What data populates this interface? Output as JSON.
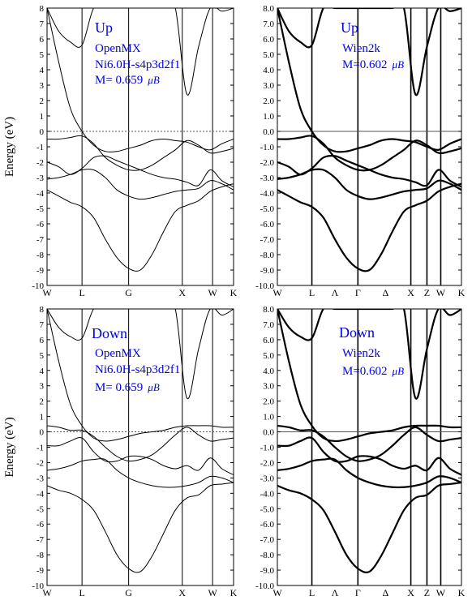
{
  "panels": [
    {
      "id": "up-openmx",
      "ylabel": "Energy (eV)",
      "ylim": [
        -10,
        8
      ],
      "y_ticks": [
        "8",
        "7",
        "6",
        "5",
        "4",
        "3",
        "2",
        "1",
        "0",
        "-1",
        "-2",
        "-3",
        "-4",
        "-5",
        "-6",
        "-7",
        "-8",
        "-9",
        "-10"
      ],
      "x_ticks": [
        "W",
        "L",
        "G",
        "X",
        "W",
        "K"
      ],
      "annotations": [
        "Up",
        "OpenMX",
        "Ni6.0H-s4p3d2f1",
        "M= 0.659"
      ],
      "unit": "μB"
    },
    {
      "id": "up-wien2k",
      "ylabel": "",
      "ylim": [
        -10,
        8
      ],
      "y_ticks": [
        "8.0",
        "7.0",
        "6.0",
        "5.0",
        "4.0",
        "3.0",
        "2.0",
        "1.0",
        "0.0",
        "-1.0",
        "-2.0",
        "-3.0",
        "-4.0",
        "-5.0",
        "-6.0",
        "-7.0",
        "-8.0",
        "-9.0",
        "-10.0"
      ],
      "x_ticks": [
        "W",
        "L",
        "Λ",
        "Γ",
        "Δ",
        "X",
        "Z",
        "W",
        "K"
      ],
      "annotations": [
        "Up",
        "Wien2k",
        "M=0.602"
      ],
      "unit": "μB"
    },
    {
      "id": "down-openmx",
      "ylabel": "Energy (eV)",
      "ylim": [
        -10,
        8
      ],
      "y_ticks": [
        "8",
        "7",
        "6",
        "5",
        "4",
        "3",
        "2",
        "1",
        "0",
        "-1",
        "-2",
        "-3",
        "-4",
        "-5",
        "-6",
        "-7",
        "-8",
        "-9",
        "-10"
      ],
      "x_ticks": [
        "W",
        "L",
        "G",
        "X",
        "W",
        "K"
      ],
      "annotations": [
        "Down",
        "OpenMX",
        "Ni6.0H-s4p3d2f1",
        "M= 0.659"
      ],
      "unit": "μB"
    },
    {
      "id": "down-wien2k",
      "ylabel": "",
      "ylim": [
        -10,
        8
      ],
      "y_ticks": [
        "8.0",
        "7.0",
        "6.0",
        "5.0",
        "4.0",
        "3.0",
        "2.0",
        "1.0",
        "0.0",
        "-1.0",
        "-2.0",
        "-3.0",
        "-4.0",
        "-5.0",
        "-6.0",
        "-7.0",
        "-8.0",
        "-9.0",
        "-10.0"
      ],
      "x_ticks": [
        "W",
        "L",
        "Λ",
        "Γ",
        "Δ",
        "X",
        "Z",
        "W",
        "K"
      ],
      "annotations": [
        "Down",
        "Wien2k",
        "M=0.602"
      ],
      "unit": "μB"
    }
  ],
  "colors": {
    "annotation": "#0000ee",
    "axis": "#000000",
    "band": "#000000",
    "fermi": "#555555"
  },
  "chart_data": [
    {
      "type": "line",
      "title": "",
      "ylabel": "Energy (eV)",
      "ylim": [
        -10,
        8
      ],
      "x": [
        0,
        0.25,
        0.5,
        0.75,
        1,
        1.25,
        1.5,
        1.75,
        2,
        2.25,
        2.5,
        2.75,
        3,
        3.25,
        3.5,
        3.75,
        4
      ],
      "x_tick_positions": [
        0,
        0.75,
        1.75,
        2.9,
        3.55,
        4.0
      ],
      "x_tick_labels": [
        "W",
        "L",
        "G",
        "X",
        "W",
        "K"
      ],
      "fermi_level": 0,
      "series": [
        {
          "values": [
            8.0,
            4.5,
            1.5,
            0.0,
            -0.9,
            -1.3,
            -1.3,
            -1.1,
            -0.9,
            -0.6,
            -0.5,
            -0.6,
            -0.7,
            -1.0,
            -1.2,
            -0.8,
            -0.5
          ]
        },
        {
          "values": [
            -0.5,
            -0.5,
            -0.4,
            -0.3,
            -0.8,
            -1.7,
            -2.2,
            -2.5,
            -2.5,
            -2.2,
            -1.7,
            -1.2,
            -0.6,
            -0.9,
            -1.4,
            -1.3,
            -1.1
          ]
        },
        {
          "values": [
            -2.0,
            -2.3,
            -2.8,
            -2.4,
            -1.7,
            -1.6,
            -1.9,
            -2.2,
            -2.5,
            -2.8,
            -3.0,
            -3.1,
            -3.3,
            -3.5,
            -2.5,
            -3.2,
            -3.6
          ]
        },
        {
          "values": [
            -3.1,
            -3.0,
            -2.8,
            -2.5,
            -2.5,
            -3.0,
            -3.8,
            -4.2,
            -4.4,
            -4.3,
            -4.1,
            -3.9,
            -3.8,
            -3.7,
            -3.2,
            -3.4,
            -3.8
          ]
        },
        {
          "values": [
            -3.8,
            -4.2,
            -4.6,
            -4.9,
            -5.6,
            -7.0,
            -8.2,
            -8.9,
            -9.0,
            -8.0,
            -6.5,
            -5.2,
            -4.8,
            -4.5,
            -3.9,
            -3.6,
            -3.4
          ]
        },
        {
          "values": [
            8.0,
            6.5,
            5.8,
            5.6,
            8.0,
            8.0,
            8.0,
            8.0,
            8.0,
            8.0,
            8.0,
            8.0,
            2.4,
            5.5,
            8.0,
            7.8,
            8.0
          ]
        }
      ],
      "annotations": [
        "Up",
        "OpenMX",
        "Ni6.0H-s4p3d2f1",
        "M= 0.659 μB"
      ]
    },
    {
      "type": "line",
      "title": "",
      "ylabel": "",
      "ylim": [
        -10,
        8
      ],
      "x": [
        0,
        0.25,
        0.5,
        0.75,
        1,
        1.25,
        1.5,
        1.75,
        2,
        2.25,
        2.5,
        2.75,
        3,
        3.25,
        3.5,
        3.75,
        4
      ],
      "x_tick_positions": [
        0,
        0.75,
        1.25,
        1.75,
        2.35,
        2.9,
        3.25,
        3.55,
        4.0
      ],
      "x_tick_labels": [
        "W",
        "L",
        "Λ",
        "Γ",
        "Δ",
        "X",
        "Z",
        "W",
        "K"
      ],
      "fermi_level": 0,
      "series": [
        {
          "values": [
            8.0,
            4.5,
            1.5,
            0.0,
            -0.9,
            -1.3,
            -1.3,
            -1.1,
            -0.9,
            -0.6,
            -0.5,
            -0.6,
            -0.7,
            -1.0,
            -1.2,
            -0.8,
            -0.5
          ]
        },
        {
          "values": [
            -0.5,
            -0.5,
            -0.4,
            -0.3,
            -0.8,
            -1.7,
            -2.2,
            -2.5,
            -2.5,
            -2.2,
            -1.7,
            -1.2,
            -0.6,
            -0.9,
            -1.4,
            -1.3,
            -1.1
          ]
        },
        {
          "values": [
            -2.0,
            -2.3,
            -2.8,
            -2.4,
            -1.7,
            -1.6,
            -1.9,
            -2.2,
            -2.5,
            -2.8,
            -3.0,
            -3.1,
            -3.3,
            -3.5,
            -2.5,
            -3.2,
            -3.6
          ]
        },
        {
          "values": [
            -3.1,
            -3.0,
            -2.8,
            -2.5,
            -2.5,
            -3.0,
            -3.8,
            -4.2,
            -4.4,
            -4.3,
            -4.1,
            -3.9,
            -3.8,
            -3.7,
            -3.2,
            -3.4,
            -3.8
          ]
        },
        {
          "values": [
            -3.8,
            -4.2,
            -4.6,
            -4.9,
            -5.6,
            -7.0,
            -8.2,
            -8.9,
            -9.0,
            -8.0,
            -6.5,
            -5.2,
            -4.8,
            -4.5,
            -3.9,
            -3.6,
            -3.4
          ]
        },
        {
          "values": [
            8.0,
            6.5,
            5.8,
            5.6,
            8.0,
            8.0,
            8.0,
            8.0,
            8.0,
            8.0,
            8.0,
            8.0,
            2.4,
            5.5,
            8.0,
            7.8,
            8.0
          ]
        }
      ],
      "annotations": [
        "Up",
        "Wien2k",
        "M=0.602 μB"
      ]
    },
    {
      "type": "line",
      "title": "",
      "ylabel": "Energy (eV)",
      "ylim": [
        -10,
        8
      ],
      "x": [
        0,
        0.25,
        0.5,
        0.75,
        1,
        1.25,
        1.5,
        1.75,
        2,
        2.25,
        2.5,
        2.75,
        3,
        3.25,
        3.5,
        3.75,
        4
      ],
      "x_tick_positions": [
        0,
        0.75,
        1.75,
        2.9,
        3.55,
        4.0
      ],
      "x_tick_labels": [
        "W",
        "L",
        "G",
        "X",
        "W",
        "K"
      ],
      "fermi_level": 0,
      "series": [
        {
          "values": [
            8.0,
            4.6,
            1.8,
            0.4,
            -0.4,
            -0.6,
            -0.5,
            -0.3,
            -0.1,
            0.0,
            0.1,
            0.3,
            0.4,
            0.4,
            0.4,
            0.3,
            0.3
          ]
        },
        {
          "values": [
            0.4,
            0.3,
            0.1,
            0.1,
            -0.3,
            -1.0,
            -1.6,
            -1.9,
            -1.8,
            -1.5,
            -0.9,
            -0.2,
            0.3,
            -0.2,
            -0.6,
            -0.5,
            -0.4
          ]
        },
        {
          "values": [
            -0.9,
            -0.9,
            -0.6,
            -0.4,
            -1.3,
            -1.9,
            -1.9,
            -1.6,
            -1.6,
            -1.8,
            -2.2,
            -2.4,
            -2.2,
            -2.5,
            -1.7,
            -2.4,
            -2.8
          ]
        },
        {
          "values": [
            -2.5,
            -2.4,
            -2.2,
            -1.9,
            -1.8,
            -1.8,
            -2.5,
            -3.0,
            -3.3,
            -3.5,
            -3.6,
            -3.6,
            -3.5,
            -3.3,
            -2.9,
            -3.0,
            -3.3
          ]
        },
        {
          "values": [
            -3.5,
            -3.8,
            -4.0,
            -4.4,
            -5.1,
            -6.5,
            -8.0,
            -8.9,
            -9.1,
            -8.1,
            -6.6,
            -5.1,
            -4.3,
            -4.1,
            -3.5,
            -3.4,
            -3.3
          ]
        },
        {
          "values": [
            8.0,
            6.8,
            6.2,
            6.1,
            8.0,
            8.0,
            8.0,
            8.0,
            8.0,
            8.0,
            8.0,
            8.0,
            2.2,
            5.4,
            8.0,
            7.6,
            8.0
          ]
        }
      ],
      "annotations": [
        "Down",
        "OpenMX",
        "Ni6.0H-s4p3d2f1",
        "M= 0.659 μB"
      ]
    },
    {
      "type": "line",
      "title": "",
      "ylabel": "",
      "ylim": [
        -10,
        8
      ],
      "x": [
        0,
        0.25,
        0.5,
        0.75,
        1,
        1.25,
        1.5,
        1.75,
        2,
        2.25,
        2.5,
        2.75,
        3,
        3.25,
        3.5,
        3.75,
        4
      ],
      "x_tick_positions": [
        0,
        0.75,
        1.25,
        1.75,
        2.35,
        2.9,
        3.25,
        3.55,
        4.0
      ],
      "x_tick_labels": [
        "W",
        "L",
        "Λ",
        "Γ",
        "Δ",
        "X",
        "Z",
        "W",
        "K"
      ],
      "fermi_level": 0,
      "series": [
        {
          "values": [
            8.0,
            4.6,
            1.8,
            0.4,
            -0.4,
            -0.6,
            -0.5,
            -0.3,
            -0.1,
            0.0,
            0.1,
            0.3,
            0.4,
            0.4,
            0.4,
            0.3,
            0.3
          ]
        },
        {
          "values": [
            0.4,
            0.3,
            0.1,
            0.1,
            -0.3,
            -1.0,
            -1.6,
            -1.9,
            -1.8,
            -1.5,
            -0.9,
            -0.2,
            0.3,
            -0.2,
            -0.6,
            -0.5,
            -0.4
          ]
        },
        {
          "values": [
            -0.9,
            -0.9,
            -0.6,
            -0.4,
            -1.3,
            -1.9,
            -1.9,
            -1.6,
            -1.6,
            -1.8,
            -2.2,
            -2.4,
            -2.2,
            -2.5,
            -1.7,
            -2.4,
            -2.8
          ]
        },
        {
          "values": [
            -2.5,
            -2.4,
            -2.2,
            -1.9,
            -1.8,
            -1.8,
            -2.5,
            -3.0,
            -3.3,
            -3.5,
            -3.6,
            -3.6,
            -3.5,
            -3.3,
            -2.9,
            -3.0,
            -3.3
          ]
        },
        {
          "values": [
            -3.5,
            -3.8,
            -4.0,
            -4.4,
            -5.1,
            -6.5,
            -8.0,
            -8.9,
            -9.1,
            -8.1,
            -6.6,
            -5.1,
            -4.3,
            -4.1,
            -3.5,
            -3.4,
            -3.3
          ]
        },
        {
          "values": [
            8.0,
            6.8,
            6.2,
            6.1,
            8.0,
            8.0,
            8.0,
            8.0,
            8.0,
            8.0,
            8.0,
            8.0,
            2.2,
            5.4,
            8.0,
            7.6,
            8.0
          ]
        }
      ],
      "annotations": [
        "Down",
        "Wien2k",
        "M=0.602 μB"
      ]
    }
  ]
}
